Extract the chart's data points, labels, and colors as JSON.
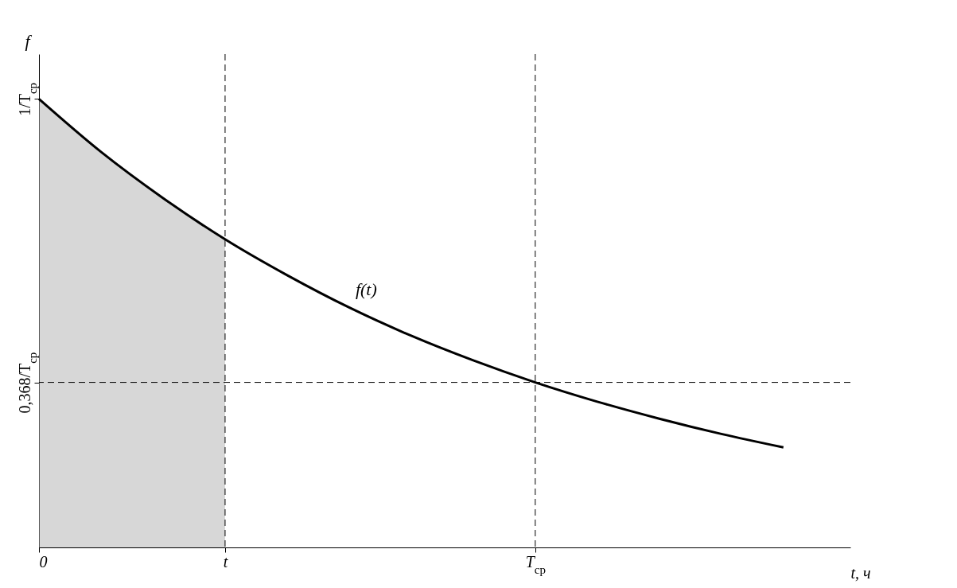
{
  "chart_data": {
    "type": "line",
    "xlabel": "t, ч",
    "ylabel": "f",
    "categories": [
      "0",
      null,
      null,
      "t",
      null,
      null,
      null,
      null,
      "T$_{ср}$",
      null,
      null,
      null,
      null
    ],
    "ylim": [
      0,
      1.1
    ],
    "yticks": [
      {
        "value": 0.368,
        "label": "0,368/T$_{ср}$"
      },
      {
        "value": 1,
        "label": "1/T$_{ср}$"
      }
    ],
    "series": [
      {
        "type": "area",
        "color": "#b0b0b0",
        "values": [
          1,
          0.882,
          0.779,
          0.687,
          null,
          null,
          null,
          null,
          null,
          null,
          null,
          null,
          null
        ]
      },
      {
        "color": "#000000",
        "values": [
          1,
          0.882,
          0.779,
          0.687,
          0.607,
          0.535,
          0.472,
          0.417,
          0.368,
          0.325,
          0.287,
          0.253,
          0.223
        ]
      }
    ],
    "ref_lines": [
      {
        "axis": "x",
        "value": "t",
        "line_style": "dashed"
      },
      {
        "axis": "x",
        "value": "T$_{ср}$",
        "line_style": "dashed"
      },
      {
        "axis": "y",
        "value": 0.368,
        "line_style": "dashed"
      }
    ],
    "annotations": [
      "f(t)"
    ]
  }
}
